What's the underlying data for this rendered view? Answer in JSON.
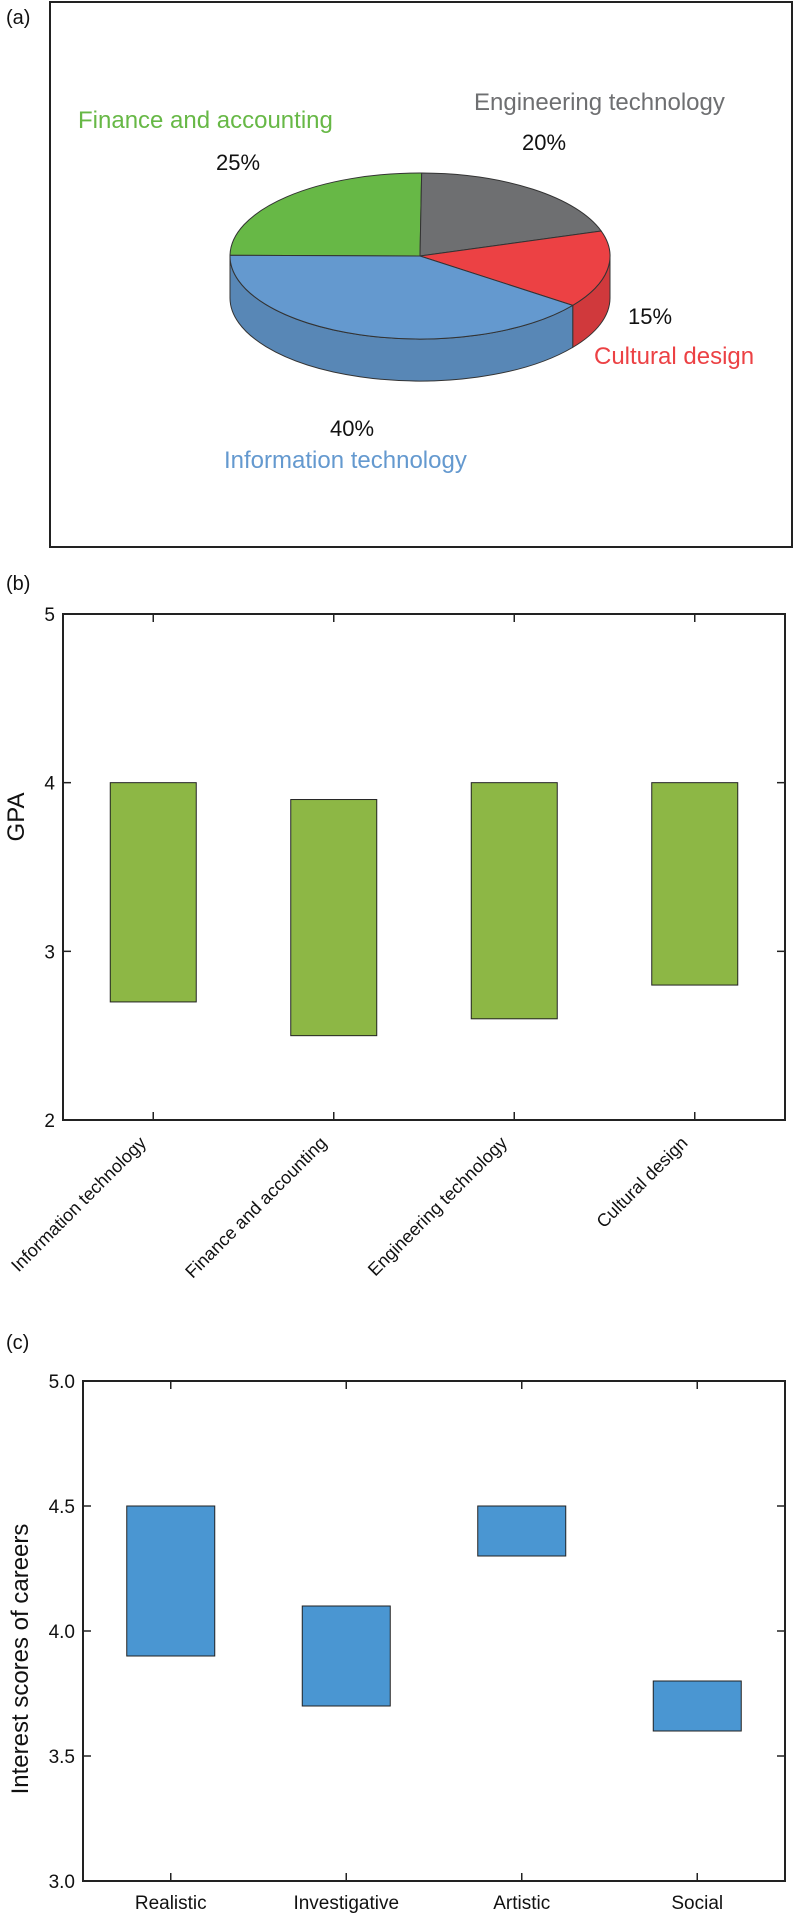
{
  "chart_data": [
    {
      "panel": "(a)",
      "type": "pie",
      "slices": [
        {
          "label": "Finance and accounting",
          "value": 25,
          "percent_label": "25%",
          "color": "#67b846"
        },
        {
          "label": "Engineering technology",
          "value": 20,
          "percent_label": "20%",
          "color": "#6e6f71"
        },
        {
          "label": "Cultural  design",
          "value": 15,
          "percent_label": "15%",
          "color": "#ec4144"
        },
        {
          "label": "Information technology",
          "value": 40,
          "percent_label": "40%",
          "color": "#6499cf"
        }
      ]
    },
    {
      "panel": "(b)",
      "type": "bar",
      "subtype": "floating-range",
      "ylabel": "GPA",
      "ylim": [
        2,
        5
      ],
      "yticks": [
        "2",
        "3",
        "4",
        "5"
      ],
      "bar_color": "#8db745",
      "categories": [
        "Information technology",
        "Finance and accounting",
        "Engineering technology",
        "Cultural design"
      ],
      "low": [
        2.7,
        2.5,
        2.6,
        2.8
      ],
      "high": [
        4.0,
        3.9,
        4.0,
        4.0
      ]
    },
    {
      "panel": "(c)",
      "type": "bar",
      "subtype": "floating-range",
      "ylabel": "Interest scores of careers",
      "ylim": [
        3.0,
        5.0
      ],
      "yticks": [
        "3.0",
        "3.5",
        "4.0",
        "4.5",
        "5.0"
      ],
      "bar_color": "#4a96d2",
      "categories": [
        "Realistic",
        "Investigative",
        "Artistic",
        "Social"
      ],
      "low": [
        3.9,
        3.7,
        4.3,
        3.6
      ],
      "high": [
        4.5,
        4.1,
        4.5,
        3.8
      ]
    }
  ]
}
